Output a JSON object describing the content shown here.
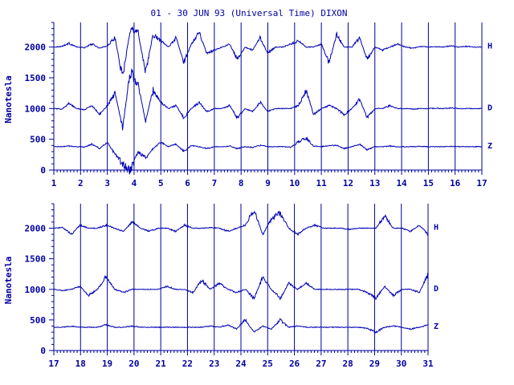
{
  "chart_data": {
    "type": "line",
    "title": "01 - 30 JUN 93 (Universal Time) DIXON",
    "ylabel": "Nanotesla",
    "colors": {
      "ink": "#0000a0",
      "trace": "#0000b4",
      "background": "#ffffff"
    },
    "grid": "vertical day lines",
    "panels": [
      {
        "x_ticks": [
          "1",
          "2",
          "3",
          "4",
          "5",
          "6",
          "7",
          "8",
          "9",
          "10",
          "11",
          "12",
          "13",
          "14",
          "15",
          "16",
          "17"
        ],
        "xlim": [
          1,
          17
        ],
        "y_ticks": [
          "0",
          "500",
          "1000",
          "1500",
          "2000"
        ],
        "ylim": [
          0,
          2400
        ],
        "series": [
          {
            "name": "H",
            "baseline": 2000,
            "values": [
              2000,
              2010,
              2060,
              2000,
              1990,
              2050,
              1980,
              2020,
              2150,
              1500,
              2300,
              2250,
              1600,
              2200,
              2100,
              2000,
              2150,
              1750,
              2050,
              2250,
              1900,
              1950,
              2000,
              2050,
              1800,
              2000,
              1950,
              2150,
              1900,
              2000,
              2000,
              2050,
              2100,
              2000,
              2000,
              2050,
              1750,
              2200,
              2000,
              2000,
              2150,
              1800,
              2000,
              1950,
              2000,
              2050,
              2000,
              1980,
              2010,
              2000,
              2005,
              2000,
              2020,
              2000,
              2010,
              2000,
              2000
            ]
          },
          {
            "name": "D",
            "baseline": 1000,
            "values": [
              1000,
              990,
              1080,
              1000,
              980,
              1050,
              900,
              1050,
              1250,
              700,
              1600,
              1400,
              800,
              1300,
              1100,
              1000,
              1050,
              850,
              1000,
              1100,
              950,
              1000,
              1000,
              1050,
              850,
              1000,
              950,
              1100,
              950,
              1000,
              1000,
              1000,
              1050,
              1300,
              900,
              1000,
              1050,
              1000,
              900,
              1000,
              1150,
              850,
              1000,
              1000,
              1050,
              1000,
              1000,
              990,
              1000,
              1000,
              1005,
              1000,
              1010,
              1000,
              1000,
              1000,
              1000
            ]
          },
          {
            "name": "Z",
            "baseline": 380,
            "values": [
              380,
              380,
              390,
              380,
              375,
              420,
              350,
              450,
              250,
              100,
              -20,
              300,
              200,
              350,
              450,
              380,
              420,
              300,
              400,
              380,
              350,
              380,
              380,
              390,
              350,
              380,
              370,
              400,
              380,
              380,
              380,
              370,
              460,
              520,
              390,
              380,
              400,
              400,
              350,
              380,
              420,
              330,
              380,
              380,
              390,
              380,
              380,
              380,
              385,
              380,
              380,
              380,
              385,
              380,
              380,
              380,
              380
            ]
          }
        ]
      },
      {
        "x_ticks": [
          "17",
          "18",
          "19",
          "20",
          "21",
          "22",
          "23",
          "24",
          "25",
          "26",
          "27",
          "28",
          "29",
          "30",
          "31"
        ],
        "xlim": [
          17,
          31
        ],
        "y_ticks": [
          "0",
          "500",
          "1000",
          "1500",
          "2000"
        ],
        "ylim": [
          0,
          2400
        ],
        "series": [
          {
            "name": "H",
            "baseline": 2000,
            "values": [
              2000,
              2010,
              1900,
              2050,
              2000,
              2000,
              2050,
              2000,
              1950,
              2100,
              2000,
              1950,
              2000,
              2000,
              1950,
              2050,
              2000,
              2000,
              2010,
              2000,
              1950,
              2000,
              2050,
              2300,
              1900,
              2150,
              2250,
              2000,
              1900,
              2000,
              2050,
              2000,
              2000,
              2000,
              1980,
              2000,
              2000,
              2000,
              2200,
              2000,
              2000,
              1950,
              2050,
              1900
            ]
          },
          {
            "name": "D",
            "baseline": 1000,
            "values": [
              1000,
              980,
              1000,
              1050,
              900,
              1000,
              1200,
              1000,
              950,
              1000,
              1000,
              1000,
              1000,
              1050,
              1000,
              1000,
              950,
              1150,
              1000,
              1100,
              1000,
              950,
              1000,
              850,
              1200,
              1000,
              850,
              1100,
              1000,
              1100,
              1000,
              1000,
              1000,
              1000,
              1000,
              1000,
              950,
              850,
              1050,
              900,
              1000,
              1000,
              950,
              1250
            ]
          },
          {
            "name": "Z",
            "baseline": 380,
            "values": [
              380,
              380,
              400,
              380,
              380,
              380,
              420,
              380,
              380,
              400,
              380,
              380,
              380,
              380,
              380,
              380,
              380,
              380,
              400,
              380,
              420,
              350,
              500,
              300,
              400,
              350,
              500,
              380,
              400,
              380,
              380,
              380,
              380,
              380,
              380,
              380,
              360,
              300,
              380,
              400,
              380,
              350,
              380,
              420
            ]
          }
        ]
      }
    ]
  }
}
